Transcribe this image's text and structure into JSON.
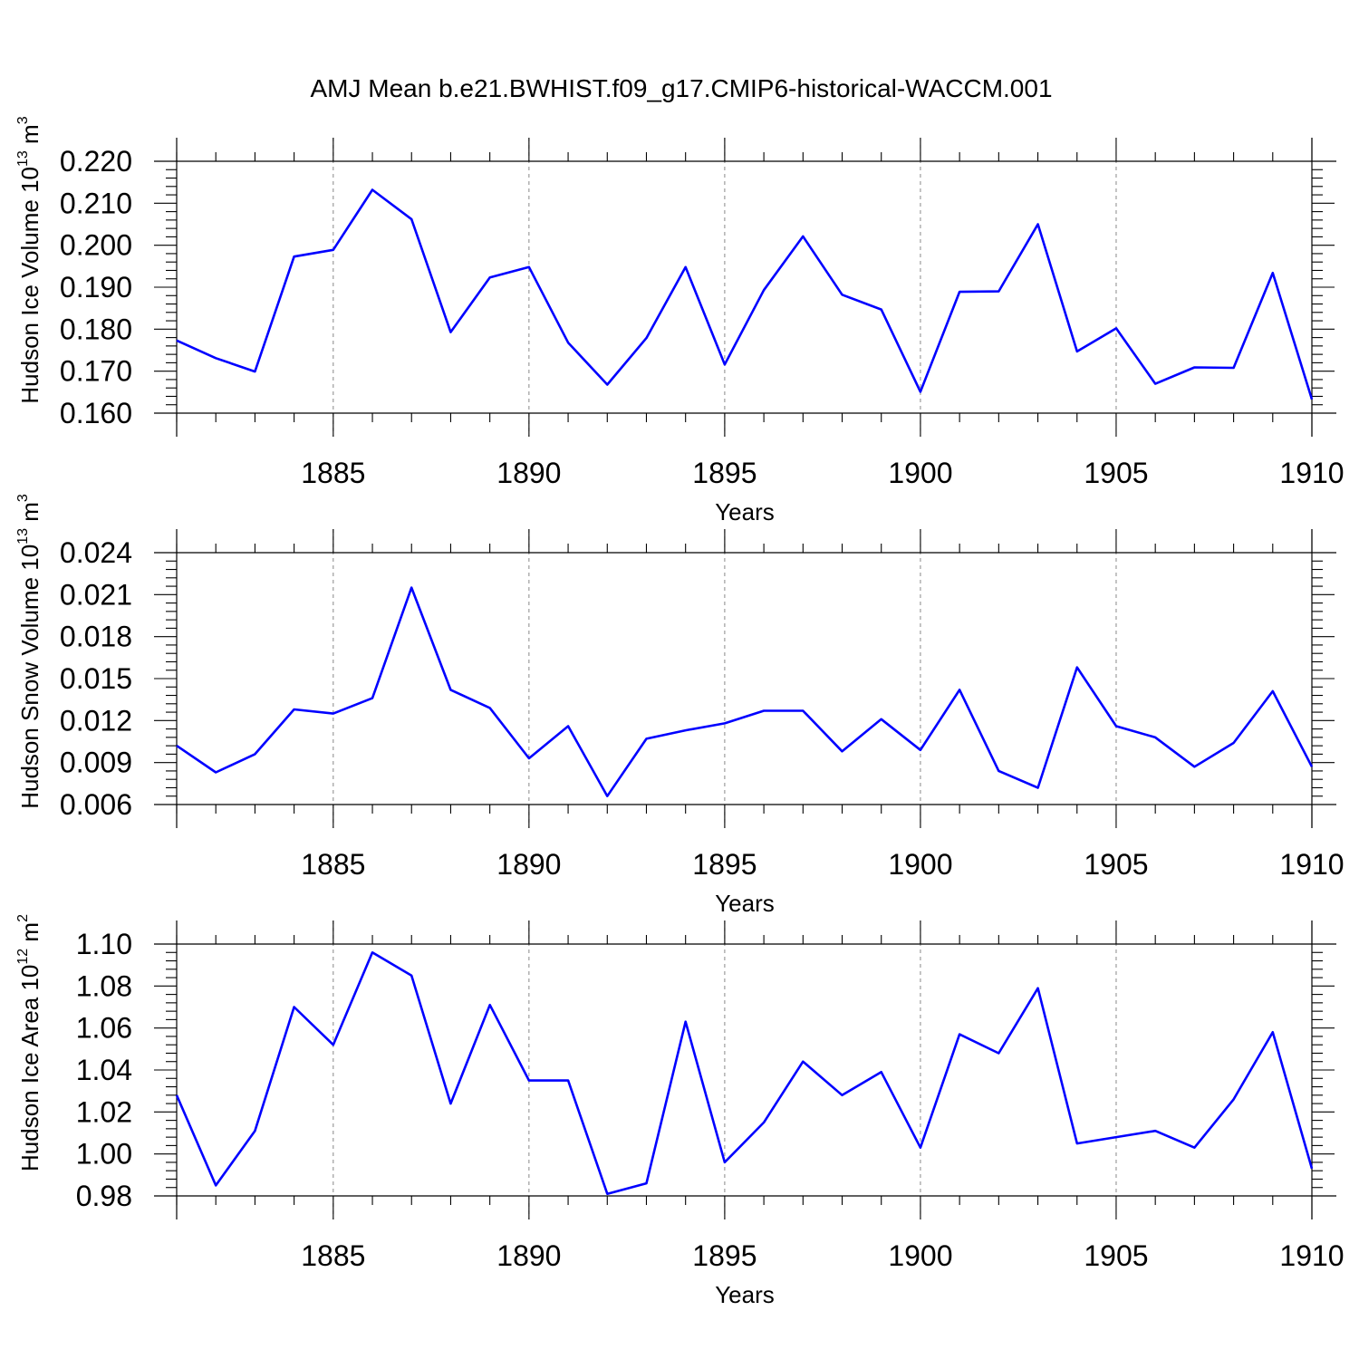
{
  "figure": {
    "title": "AMJ Mean b.e21.BWHIST.f09_g17.CMIP6-historical-WACCM.001"
  },
  "chart_data": [
    {
      "type": "line",
      "xlabel": "Years",
      "ylabel": {
        "text": "Hudson Ice Volume 10",
        "exp": "13",
        "unit": " m",
        "unit_exp": "3"
      },
      "xlim": [
        1881,
        1910
      ],
      "ylim": [
        0.16,
        0.22
      ],
      "xticks": [
        1885,
        1890,
        1895,
        1900,
        1905,
        1910
      ],
      "xtick_labels": [
        "1885",
        "1890",
        "1895",
        "1900",
        "1905",
        "1910"
      ],
      "yticks": [
        0.16,
        0.17,
        0.18,
        0.19,
        0.2,
        0.21,
        0.22
      ],
      "ytick_labels": [
        "0.160",
        "0.170",
        "0.180",
        "0.190",
        "0.200",
        "0.210",
        "0.220"
      ],
      "grid": "vertical dashed at major x ticks",
      "color": "#0000ff",
      "x": [
        1881,
        1882,
        1883,
        1884,
        1885,
        1886,
        1887,
        1888,
        1889,
        1890,
        1891,
        1892,
        1893,
        1894,
        1895,
        1896,
        1897,
        1898,
        1899,
        1900,
        1901,
        1902,
        1903,
        1904,
        1905,
        1906,
        1907,
        1908,
        1909,
        1910
      ],
      "values": [
        0.1773,
        0.1731,
        0.1699,
        0.1973,
        0.1989,
        0.2132,
        0.2062,
        0.1793,
        0.1923,
        0.1948,
        0.1768,
        0.1668,
        0.1779,
        0.1948,
        0.1716,
        0.1893,
        0.2021,
        0.1882,
        0.1847,
        0.1651,
        0.1889,
        0.189,
        0.205,
        0.1747,
        0.1802,
        0.167,
        0.1709,
        0.1708,
        0.1934,
        0.1633
      ]
    },
    {
      "type": "line",
      "xlabel": "Years",
      "ylabel": {
        "text": "Hudson Snow Volume 10",
        "exp": "13",
        "unit": " m",
        "unit_exp": "3"
      },
      "xlim": [
        1881,
        1910
      ],
      "ylim": [
        0.006,
        0.024
      ],
      "xticks": [
        1885,
        1890,
        1895,
        1900,
        1905,
        1910
      ],
      "xtick_labels": [
        "1885",
        "1890",
        "1895",
        "1900",
        "1905",
        "1910"
      ],
      "yticks": [
        0.006,
        0.009,
        0.012,
        0.015,
        0.018,
        0.021,
        0.024
      ],
      "ytick_labels": [
        "0.006",
        "0.009",
        "0.012",
        "0.015",
        "0.018",
        "0.021",
        "0.024"
      ],
      "grid": "vertical dashed at major x ticks",
      "color": "#0000ff",
      "x": [
        1881,
        1882,
        1883,
        1884,
        1885,
        1886,
        1887,
        1888,
        1889,
        1890,
        1891,
        1892,
        1893,
        1894,
        1895,
        1896,
        1897,
        1898,
        1899,
        1900,
        1901,
        1902,
        1903,
        1904,
        1905,
        1906,
        1907,
        1908,
        1909,
        1910
      ],
      "values": [
        0.0102,
        0.0083,
        0.0096,
        0.0128,
        0.0125,
        0.0136,
        0.0215,
        0.0142,
        0.0129,
        0.0093,
        0.0116,
        0.0066,
        0.0107,
        0.0113,
        0.0118,
        0.0127,
        0.0127,
        0.0098,
        0.0121,
        0.0099,
        0.0142,
        0.0084,
        0.0072,
        0.0158,
        0.0116,
        0.0108,
        0.0087,
        0.0104,
        0.0141,
        0.0087
      ]
    },
    {
      "type": "line",
      "xlabel": "Years",
      "ylabel": {
        "text": "Hudson Ice Area 10",
        "exp": "12",
        "unit": " m",
        "unit_exp": "2"
      },
      "xlim": [
        1881,
        1910
      ],
      "ylim": [
        0.98,
        1.1
      ],
      "xticks": [
        1885,
        1890,
        1895,
        1900,
        1905,
        1910
      ],
      "xtick_labels": [
        "1885",
        "1890",
        "1895",
        "1900",
        "1905",
        "1910"
      ],
      "yticks": [
        0.98,
        1.0,
        1.02,
        1.04,
        1.06,
        1.08,
        1.1
      ],
      "ytick_labels": [
        "0.98",
        "1.00",
        "1.02",
        "1.04",
        "1.06",
        "1.08",
        "1.10"
      ],
      "grid": "vertical dashed at major x ticks",
      "color": "#0000ff",
      "x": [
        1881,
        1882,
        1883,
        1884,
        1885,
        1886,
        1887,
        1888,
        1889,
        1890,
        1891,
        1892,
        1893,
        1894,
        1895,
        1896,
        1897,
        1898,
        1899,
        1900,
        1901,
        1902,
        1903,
        1904,
        1905,
        1906,
        1907,
        1908,
        1909,
        1910
      ],
      "values": [
        1.028,
        0.985,
        1.011,
        1.07,
        1.052,
        1.096,
        1.085,
        1.024,
        1.071,
        1.035,
        1.035,
        0.981,
        0.986,
        1.063,
        0.996,
        1.015,
        1.044,
        1.028,
        1.039,
        1.003,
        1.057,
        1.048,
        1.079,
        1.005,
        1.008,
        1.011,
        1.003,
        1.026,
        1.058,
        0.993
      ]
    }
  ]
}
